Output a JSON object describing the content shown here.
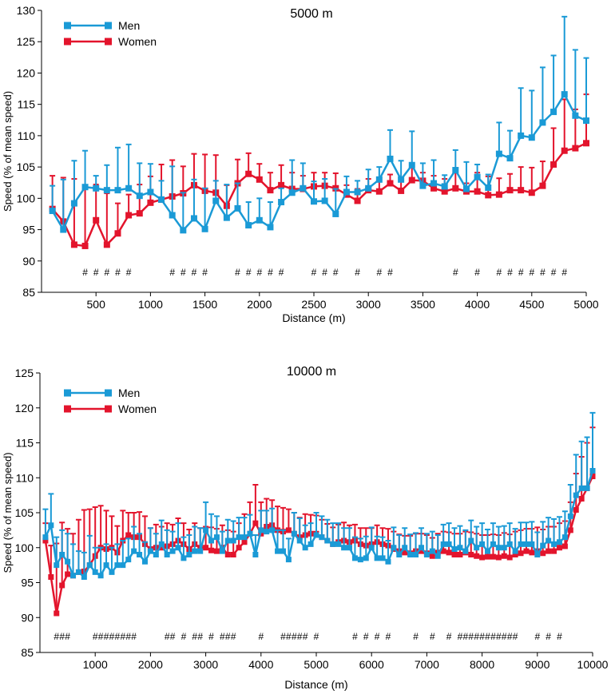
{
  "chart_data": [
    {
      "type": "line",
      "title": "5000 m",
      "xlabel": "Distance (m)",
      "ylabel": "Speed (% of mean speed)",
      "xlim": [
        0,
        5000
      ],
      "ylim": [
        85,
        130
      ],
      "xticks": [
        500,
        1000,
        1500,
        2000,
        2500,
        3000,
        3500,
        4000,
        4500,
        5000
      ],
      "yticks": [
        85,
        90,
        95,
        100,
        105,
        110,
        115,
        120,
        125,
        130
      ],
      "legend": "top-left",
      "series": [
        {
          "name": "Men",
          "color": "#1a9ad6",
          "x": [
            100,
            200,
            300,
            400,
            500,
            600,
            700,
            800,
            900,
            1000,
            1100,
            1200,
            1300,
            1400,
            1500,
            1600,
            1700,
            1800,
            1900,
            2000,
            2100,
            2200,
            2300,
            2400,
            2500,
            2600,
            2700,
            2800,
            2900,
            3000,
            3100,
            3200,
            3300,
            3400,
            3500,
            3600,
            3700,
            3800,
            3900,
            4000,
            4100,
            4200,
            4300,
            4400,
            4500,
            4600,
            4700,
            4800,
            4900,
            5000
          ],
          "values": [
            98.0,
            95.0,
            99.2,
            101.8,
            101.6,
            101.3,
            101.3,
            101.6,
            100.4,
            101.0,
            99.8,
            97.3,
            94.9,
            96.8,
            95.1,
            99.6,
            96.9,
            98.4,
            95.7,
            96.5,
            95.4,
            99.4,
            100.9,
            101.6,
            99.5,
            99.6,
            97.5,
            101.0,
            101.0,
            101.6,
            103.0,
            106.3,
            103.0,
            105.3,
            102.0,
            102.4,
            101.9,
            104.5,
            101.5,
            103.4,
            101.7,
            107.1,
            106.4,
            110.0,
            109.7,
            112.1,
            113.8,
            116.6,
            113.2,
            112.4
          ],
          "errors": [
            4.0,
            8.0,
            6.8,
            5.8,
            2.0,
            4.0,
            6.8,
            7.0,
            5.2,
            4.5,
            3.0,
            7.8,
            6.0,
            6.2,
            6.5,
            3.2,
            5.3,
            4.0,
            3.7,
            3.5,
            4.0,
            2.2,
            5.2,
            4.0,
            3.2,
            3.5,
            4.0,
            2.5,
            1.8,
            3.0,
            2.0,
            4.6,
            3.0,
            5.4,
            3.6,
            3.7,
            1.8,
            3.2,
            4.3,
            2.0,
            2.1,
            5.0,
            4.4,
            7.6,
            7.5,
            8.8,
            9.0,
            12.4,
            10.5,
            10.0
          ]
        },
        {
          "name": "Women",
          "color": "#e3142c",
          "x": [
            100,
            200,
            300,
            400,
            500,
            600,
            700,
            800,
            900,
            1000,
            1100,
            1200,
            1300,
            1400,
            1500,
            1600,
            1700,
            1800,
            1900,
            2000,
            2100,
            2200,
            2300,
            2400,
            2500,
            2600,
            2700,
            2800,
            2900,
            3000,
            3100,
            3200,
            3300,
            3400,
            3500,
            3600,
            3700,
            3800,
            3900,
            4000,
            4100,
            4200,
            4300,
            4400,
            4500,
            4600,
            4700,
            4800,
            4900,
            5000
          ],
          "values": [
            98.3,
            96.3,
            92.6,
            92.4,
            96.5,
            92.6,
            94.4,
            97.3,
            97.6,
            99.3,
            99.8,
            100.3,
            100.8,
            102.1,
            101.2,
            100.9,
            98.8,
            102.4,
            103.9,
            103.0,
            101.3,
            102.1,
            101.5,
            101.5,
            101.9,
            102.0,
            101.6,
            100.6,
            99.6,
            101.3,
            101.1,
            102.4,
            101.2,
            102.9,
            102.8,
            101.6,
            101.1,
            101.6,
            101.1,
            101.1,
            100.5,
            100.6,
            101.3,
            101.3,
            100.9,
            102.0,
            105.4,
            107.6,
            108.0,
            108.8
          ],
          "errors": [
            5.3,
            7.0,
            10.5,
            9.6,
            5.7,
            8.2,
            4.8,
            3.3,
            4.6,
            4.2,
            5.6,
            5.8,
            4.3,
            5.0,
            5.8,
            6.0,
            3.3,
            3.8,
            3.3,
            2.5,
            2.8,
            3.2,
            2.6,
            2.1,
            2.2,
            2.1,
            2.4,
            1.5,
            1.9,
            1.8,
            1.8,
            1.4,
            1.5,
            2.2,
            1.3,
            2.0,
            2.0,
            2.5,
            1.3,
            3.0,
            3.0,
            2.6,
            2.6,
            3.7,
            4.0,
            3.9,
            5.8,
            8.2,
            6.2,
            7.8
          ]
        }
      ],
      "annotation_label": "#",
      "annotation_x": [
        400,
        500,
        600,
        700,
        800,
        1200,
        1300,
        1400,
        1500,
        1800,
        1900,
        2000,
        2100,
        2200,
        2500,
        2600,
        2700,
        2900,
        3100,
        3200,
        3800,
        4000,
        4200,
        4300,
        4400,
        4500,
        4600,
        4700,
        4800
      ]
    },
    {
      "type": "line",
      "title": "10000 m",
      "xlabel": "Distance (m)",
      "ylabel": "Speed (% of mean speed)",
      "xlim": [
        0,
        10000
      ],
      "ylim": [
        85,
        125
      ],
      "xticks": [
        1000,
        2000,
        3000,
        4000,
        5000,
        6000,
        7000,
        8000,
        9000,
        10000
      ],
      "yticks": [
        85,
        90,
        95,
        100,
        105,
        110,
        115,
        120,
        125
      ],
      "legend": "top-left",
      "series": [
        {
          "name": "Men",
          "color": "#1a9ad6",
          "x": [
            100,
            200,
            300,
            400,
            500,
            600,
            700,
            800,
            900,
            1000,
            1100,
            1200,
            1300,
            1400,
            1500,
            1600,
            1700,
            1800,
            1900,
            2000,
            2100,
            2200,
            2300,
            2400,
            2500,
            2600,
            2700,
            2800,
            2900,
            3000,
            3100,
            3200,
            3300,
            3400,
            3500,
            3600,
            3700,
            3800,
            3900,
            4000,
            4100,
            4200,
            4300,
            4400,
            4500,
            4600,
            4700,
            4800,
            4900,
            5000,
            5100,
            5200,
            5300,
            5400,
            5500,
            5600,
            5700,
            5800,
            5900,
            6000,
            6100,
            6200,
            6300,
            6400,
            6500,
            6600,
            6700,
            6800,
            6900,
            7000,
            7100,
            7200,
            7300,
            7400,
            7500,
            7600,
            7700,
            7800,
            7900,
            8000,
            8100,
            8200,
            8300,
            8400,
            8500,
            8600,
            8700,
            8800,
            8900,
            9000,
            9100,
            9200,
            9300,
            9400,
            9500,
            9600,
            9700,
            9800,
            9900,
            10000
          ],
          "values": [
            101.5,
            103.2,
            97.5,
            99.0,
            98.0,
            96.0,
            96.5,
            95.8,
            97.5,
            96.5,
            96.0,
            97.5,
            96.5,
            97.5,
            97.5,
            98.3,
            99.5,
            99.0,
            98.0,
            99.5,
            99.0,
            100.5,
            99.0,
            99.5,
            100.0,
            98.5,
            99.0,
            99.5,
            99.5,
            102.5,
            101.0,
            101.5,
            99.5,
            101.0,
            101.0,
            101.5,
            101.5,
            102.0,
            99.0,
            102.5,
            102.3,
            102.5,
            99.5,
            99.5,
            98.3,
            102.0,
            101.0,
            100.0,
            100.5,
            101.8,
            101.5,
            101.0,
            100.5,
            100.5,
            100.0,
            100.0,
            98.5,
            98.3,
            98.5,
            100.0,
            98.5,
            98.5,
            98.0,
            100.0,
            99.0,
            100.0,
            99.0,
            99.0,
            100.0,
            99.0,
            99.5,
            98.8,
            100.5,
            100.5,
            99.8,
            100.0,
            99.5,
            101.0,
            100.0,
            100.5,
            99.5,
            100.5,
            100.0,
            100.0,
            100.5,
            99.5,
            100.5,
            100.5,
            100.5,
            99.0,
            100.3,
            101.0,
            100.5,
            100.8,
            101.5,
            104.5,
            107.5,
            108.5,
            108.5,
            111.0
          ],
          "errors": [
            4.0,
            4.5,
            4.0,
            3.5,
            4.0,
            4.5,
            3.0,
            3.5,
            4.2,
            3.5,
            4.0,
            3.0,
            3.5,
            3.0,
            3.5,
            3.0,
            3.5,
            3.0,
            2.8,
            3.3,
            3.0,
            3.4,
            3.5,
            2.8,
            3.5,
            3.0,
            2.8,
            3.5,
            3.3,
            4.0,
            3.8,
            3.0,
            2.8,
            3.0,
            2.8,
            2.8,
            2.8,
            2.7,
            2.8,
            2.8,
            3.0,
            3.1,
            3.0,
            3.0,
            3.0,
            3.0,
            3.2,
            3.2,
            3.0,
            3.2,
            3.0,
            3.0,
            3.0,
            3.0,
            2.8,
            2.8,
            3.0,
            3.0,
            3.1,
            2.9,
            3.1,
            3.0,
            3.0,
            2.9,
            2.8,
            2.8,
            2.9,
            3.1,
            2.8,
            3.0,
            2.8,
            3.0,
            2.8,
            3.0,
            3.0,
            3.1,
            3.0,
            2.9,
            3.0,
            3.0,
            3.1,
            3.0,
            3.0,
            3.1,
            3.0,
            3.2,
            3.1,
            3.1,
            3.2,
            3.2,
            3.4,
            3.3,
            3.6,
            3.6,
            3.7,
            4.5,
            5.8,
            6.7,
            7.3,
            8.3
          ]
        },
        {
          "name": "Women",
          "color": "#e3142c",
          "x": [
            100,
            200,
            300,
            400,
            500,
            600,
            700,
            800,
            900,
            1000,
            1100,
            1200,
            1300,
            1400,
            1500,
            1600,
            1700,
            1800,
            1900,
            2000,
            2100,
            2200,
            2300,
            2400,
            2500,
            2600,
            2700,
            2800,
            2900,
            3000,
            3100,
            3200,
            3300,
            3400,
            3500,
            3600,
            3700,
            3800,
            3900,
            4000,
            4100,
            4200,
            4300,
            4400,
            4500,
            4600,
            4700,
            4800,
            4900,
            5000,
            5100,
            5200,
            5300,
            5400,
            5500,
            5600,
            5700,
            5800,
            5900,
            6000,
            6100,
            6200,
            6300,
            6400,
            6500,
            6600,
            6700,
            6800,
            6900,
            7000,
            7100,
            7200,
            7300,
            7400,
            7500,
            7600,
            7700,
            7800,
            7900,
            8000,
            8100,
            8200,
            8300,
            8400,
            8500,
            8600,
            8700,
            8800,
            8900,
            9000,
            9100,
            9200,
            9300,
            9400,
            9500,
            9600,
            9700,
            9800,
            9900,
            10000
          ],
          "values": [
            101.0,
            95.8,
            90.6,
            94.6,
            96.2,
            96.0,
            96.5,
            96.6,
            97.5,
            98.8,
            100.0,
            99.8,
            100.0,
            99.3,
            101.0,
            101.8,
            101.5,
            101.5,
            100.5,
            99.8,
            100.0,
            100.0,
            100.2,
            100.5,
            101.0,
            100.5,
            99.8,
            100.5,
            100.0,
            100.0,
            99.6,
            99.5,
            100.0,
            99.0,
            99.0,
            100.0,
            100.8,
            102.0,
            103.5,
            102.0,
            103.0,
            103.2,
            102.5,
            102.3,
            102.5,
            102.0,
            101.5,
            101.8,
            102.0,
            102.0,
            101.5,
            101.0,
            100.5,
            100.8,
            101.0,
            100.8,
            101.0,
            100.5,
            100.3,
            100.5,
            100.8,
            100.5,
            100.3,
            99.8,
            99.5,
            99.3,
            99.2,
            99.5,
            99.5,
            99.2,
            98.8,
            99.3,
            99.5,
            99.3,
            99.0,
            99.0,
            99.3,
            99.0,
            98.8,
            98.6,
            98.7,
            98.7,
            98.6,
            98.8,
            98.6,
            99.0,
            99.2,
            99.5,
            99.3,
            99.5,
            99.2,
            99.5,
            99.5,
            100.0,
            100.2,
            102.5,
            105.4,
            107.0,
            108.5,
            110.2
          ],
          "errors": [
            2.5,
            4.5,
            10.0,
            9.0,
            6.5,
            6.0,
            7.5,
            8.8,
            8.0,
            7.0,
            6.0,
            5.5,
            4.5,
            3.8,
            4.3,
            3.2,
            3.5,
            3.6,
            4.0,
            3.0,
            3.3,
            3.0,
            3.3,
            2.8,
            3.2,
            3.0,
            2.8,
            3.0,
            2.8,
            3.0,
            3.3,
            3.2,
            3.2,
            3.5,
            3.3,
            3.5,
            4.0,
            4.5,
            5.5,
            4.5,
            4.0,
            3.6,
            3.4,
            3.4,
            3.0,
            3.0,
            2.8,
            3.0,
            2.7,
            2.6,
            2.5,
            2.4,
            2.4,
            2.5,
            2.6,
            2.4,
            2.3,
            2.3,
            2.5,
            2.3,
            2.4,
            2.3,
            2.4,
            2.5,
            2.4,
            2.4,
            2.5,
            2.5,
            2.5,
            2.6,
            2.6,
            2.7,
            2.8,
            2.9,
            3.0,
            3.0,
            3.0,
            3.2,
            3.2,
            3.2,
            3.1,
            3.2,
            3.2,
            3.3,
            3.3,
            3.3,
            3.3,
            3.2,
            3.4,
            3.4,
            3.4,
            3.5,
            3.5,
            3.5,
            3.6,
            4.0,
            5.2,
            6.0,
            6.5,
            7.0
          ]
        }
      ],
      "annotation_label": "#",
      "annotation_x": [
        300,
        400,
        500,
        1000,
        1100,
        1200,
        1300,
        1400,
        1500,
        1600,
        1700,
        2300,
        2400,
        2600,
        2800,
        2900,
        3100,
        3300,
        3400,
        3500,
        4000,
        4400,
        4500,
        4600,
        4700,
        4800,
        5000,
        5700,
        5900,
        6100,
        6300,
        6800,
        7100,
        7400,
        7600,
        7700,
        7800,
        7900,
        8000,
        8100,
        8200,
        8300,
        8400,
        8500,
        8600,
        9000,
        9200,
        9400
      ]
    }
  ]
}
